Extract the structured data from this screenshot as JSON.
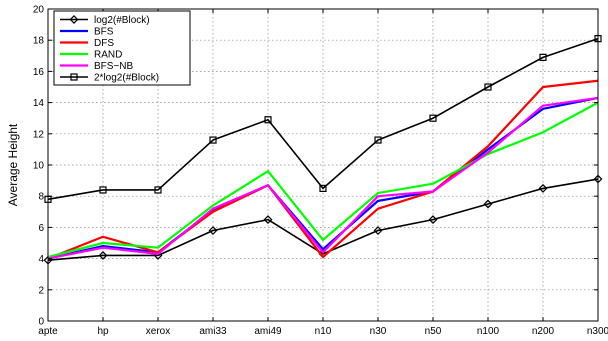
{
  "chart_data": {
    "type": "line",
    "title": "",
    "xlabel": "",
    "ylabel": "Average Height",
    "categories": [
      "apte",
      "hp",
      "xerox",
      "ami33",
      "ami49",
      "n10",
      "n30",
      "n50",
      "n100",
      "n200",
      "n300"
    ],
    "ylim": [
      0,
      20
    ],
    "yticks": [
      0,
      2,
      4,
      6,
      8,
      10,
      12,
      14,
      16,
      18,
      20
    ],
    "grid": true,
    "legend_position": "top-left",
    "series": [
      {
        "name": "log2(#Block)",
        "color": "#000000",
        "marker": "diamond",
        "values": [
          3.9,
          4.2,
          4.2,
          5.8,
          6.5,
          4.3,
          5.8,
          6.5,
          7.5,
          8.5,
          9.1
        ]
      },
      {
        "name": "BFS",
        "color": "#0000ff",
        "marker": "none",
        "values": [
          4.0,
          4.8,
          4.4,
          7.1,
          8.7,
          4.6,
          7.7,
          8.3,
          11.0,
          13.6,
          14.3
        ]
      },
      {
        "name": "DFS",
        "color": "#ff0000",
        "marker": "none",
        "values": [
          4.0,
          5.4,
          4.4,
          7.0,
          8.7,
          4.1,
          7.2,
          8.3,
          11.2,
          15.0,
          15.4
        ]
      },
      {
        "name": "RAND",
        "color": "#00ff00",
        "marker": "none",
        "values": [
          4.1,
          5.0,
          4.7,
          7.4,
          9.6,
          5.2,
          8.2,
          8.8,
          10.7,
          12.1,
          14.0
        ]
      },
      {
        "name": "BFS−NB",
        "color": "#ff00ff",
        "marker": "none",
        "values": [
          4.0,
          4.7,
          4.3,
          7.2,
          8.7,
          4.4,
          8.0,
          8.3,
          10.8,
          13.8,
          14.3
        ]
      },
      {
        "name": "2*log2(#Block)",
        "color": "#000000",
        "marker": "square",
        "values": [
          7.8,
          8.4,
          8.4,
          11.6,
          12.9,
          8.5,
          11.6,
          13.0,
          15.0,
          16.9,
          18.1
        ]
      }
    ]
  }
}
